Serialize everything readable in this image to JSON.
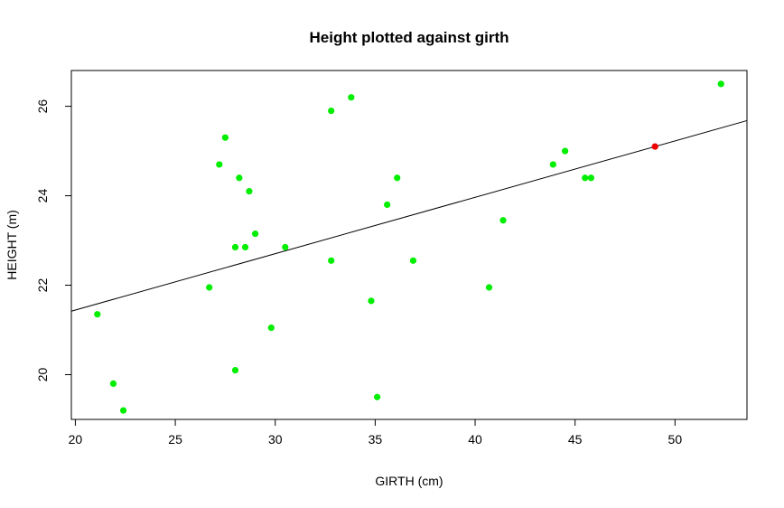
{
  "chart_data": {
    "type": "scatter",
    "title": "Height plotted against girth",
    "xlabel": "GIRTH (cm)",
    "ylabel": "HEIGHT (m)",
    "xlim": [
      19.8,
      53.6
    ],
    "ylim": [
      19.0,
      26.8
    ],
    "xticks": [
      20,
      25,
      30,
      35,
      40,
      45,
      50
    ],
    "yticks": [
      20,
      22,
      24,
      26
    ],
    "grid": false,
    "legend": "none",
    "point_color": "#00ee00",
    "highlight_color": "#ee0000",
    "line_color": "#000000",
    "points": [
      {
        "x": 21.1,
        "y": 21.35
      },
      {
        "x": 21.9,
        "y": 19.8
      },
      {
        "x": 22.4,
        "y": 19.2
      },
      {
        "x": 26.7,
        "y": 21.95
      },
      {
        "x": 27.2,
        "y": 24.7
      },
      {
        "x": 27.5,
        "y": 25.3
      },
      {
        "x": 28.0,
        "y": 22.85
      },
      {
        "x": 28.0,
        "y": 20.1
      },
      {
        "x": 28.2,
        "y": 24.4
      },
      {
        "x": 28.5,
        "y": 22.85
      },
      {
        "x": 28.7,
        "y": 24.1
      },
      {
        "x": 29.0,
        "y": 23.15
      },
      {
        "x": 29.8,
        "y": 21.05
      },
      {
        "x": 30.5,
        "y": 22.85
      },
      {
        "x": 32.8,
        "y": 25.9
      },
      {
        "x": 32.8,
        "y": 22.55
      },
      {
        "x": 33.8,
        "y": 26.2
      },
      {
        "x": 34.8,
        "y": 21.65
      },
      {
        "x": 35.1,
        "y": 19.5
      },
      {
        "x": 35.6,
        "y": 23.8
      },
      {
        "x": 36.1,
        "y": 24.4
      },
      {
        "x": 36.9,
        "y": 22.55
      },
      {
        "x": 40.7,
        "y": 21.95
      },
      {
        "x": 41.4,
        "y": 23.45
      },
      {
        "x": 43.9,
        "y": 24.7
      },
      {
        "x": 44.5,
        "y": 25.0
      },
      {
        "x": 45.5,
        "y": 24.4
      },
      {
        "x": 45.8,
        "y": 24.4
      },
      {
        "x": 52.3,
        "y": 26.5
      }
    ],
    "highlight_point": {
      "x": 49.0,
      "y": 25.1
    },
    "regression_line": {
      "x": [
        19.8,
        53.6
      ],
      "y": [
        21.42,
        25.68
      ]
    }
  }
}
